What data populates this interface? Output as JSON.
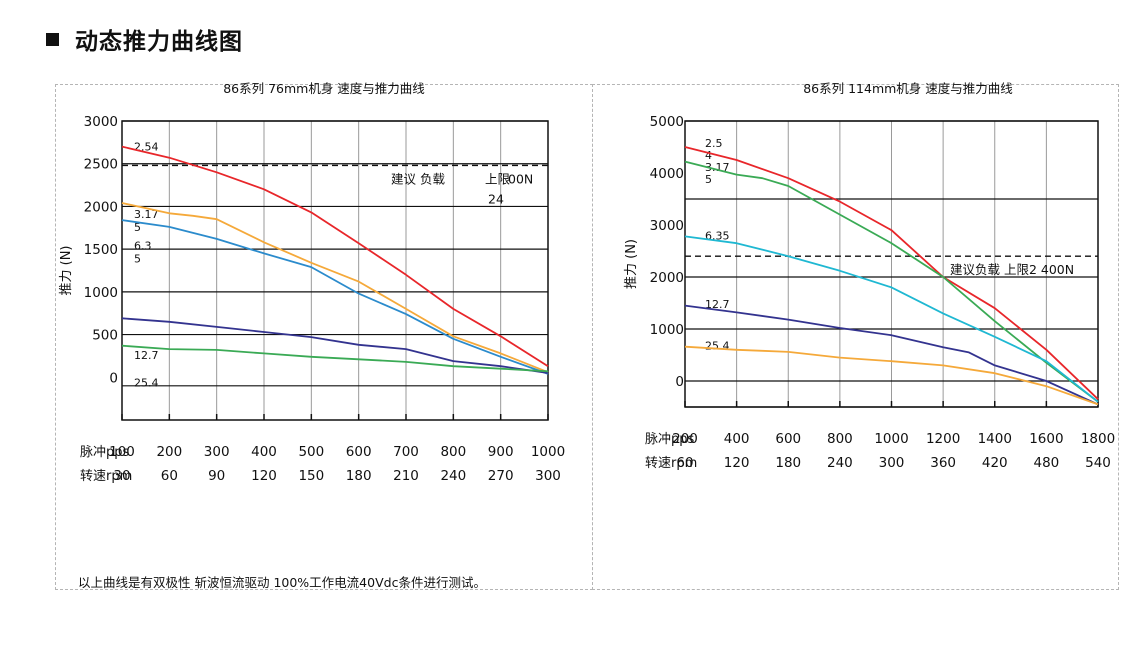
{
  "page": {
    "section_icon": "black-square-bullet",
    "section_title": "动态推力曲线图",
    "footnote": "以上曲线是有双极性 斩波恒流驱动 100%工作电流40Vdc条件进行测试。"
  },
  "colors": {
    "red": "#e8262a",
    "orange": "#f5a93a",
    "blue": "#2b8bcc",
    "navy": "#33338f",
    "green": "#3aaa55",
    "cyan": "#1fb8d2"
  },
  "chart_data": [
    {
      "type": "line",
      "title": "86系列 76mm机身 速度与推力曲线",
      "ylabel": "推力 (N)",
      "ylim": [
        -500,
        3000
      ],
      "yticks": [
        "3000",
        "2500",
        "2000",
        "1500",
        "1000",
        "500",
        "0"
      ],
      "ytick_values": [
        3000,
        2500,
        2000,
        1500,
        1000,
        500,
        0
      ],
      "xlim": [
        100,
        1000
      ],
      "x_pps": [
        100,
        200,
        300,
        400,
        500,
        600,
        700,
        800,
        900,
        1000
      ],
      "row_labels": [
        "脉冲pps",
        "转速rpm"
      ],
      "xticks_pps": [
        "100",
        "200",
        "300",
        "400",
        "500",
        "600",
        "700",
        "800",
        "900",
        "1000"
      ],
      "xticks_rpm": [
        "30",
        "60",
        "90",
        "120",
        "150",
        "180",
        "210",
        "240",
        "270",
        "300"
      ],
      "grid": true,
      "limit_line": {
        "value": 2480,
        "label_left": "建议 负载",
        "label_mid": "上限",
        "label_right": "00N",
        "label_below": "24"
      },
      "curve_labels": [
        {
          "text": "2.54",
          "y": 2700
        },
        {
          "text": "3.17",
          "y": 1910
        },
        {
          "text": "5",
          "y": 1760
        },
        {
          "text": "6.3",
          "y": 1540
        },
        {
          "text": "5",
          "y": 1390
        },
        {
          "text": "12.7",
          "y": 260
        },
        {
          "text": "25.4",
          "y": -60
        }
      ],
      "series": [
        {
          "color": "#e8262a",
          "x": [
            100,
            200,
            300,
            400,
            500,
            600,
            700,
            800,
            900,
            1000
          ],
          "values": [
            2700,
            2570,
            2400,
            2200,
            1930,
            1570,
            1200,
            800,
            480,
            130
          ]
        },
        {
          "color": "#f5a93a",
          "x": [
            100,
            200,
            250,
            300,
            400,
            500,
            600,
            700,
            800,
            900,
            1000
          ],
          "values": [
            2040,
            1920,
            1890,
            1850,
            1580,
            1340,
            1120,
            800,
            480,
            280,
            60
          ]
        },
        {
          "color": "#2b8bcc",
          "x": [
            100,
            200,
            300,
            400,
            500,
            600,
            700,
            800,
            900,
            1000
          ],
          "values": [
            1840,
            1760,
            1620,
            1450,
            1290,
            980,
            740,
            450,
            240,
            40
          ]
        },
        {
          "color": "#33338f",
          "x": [
            100,
            200,
            300,
            400,
            500,
            600,
            700,
            800,
            900,
            1000
          ],
          "values": [
            690,
            650,
            590,
            530,
            470,
            380,
            330,
            190,
            130,
            50
          ]
        },
        {
          "color": "#3aaa55",
          "x": [
            100,
            200,
            300,
            400,
            500,
            600,
            700,
            800,
            900,
            1000
          ],
          "values": [
            370,
            330,
            320,
            280,
            240,
            210,
            180,
            130,
            100,
            70
          ]
        }
      ]
    },
    {
      "type": "line",
      "title": "86系列 114mm机身 速度与推力曲线",
      "ylabel": "推力 (N)",
      "ylim": [
        -500,
        5000
      ],
      "yticks": [
        "5000",
        "4000",
        "3000",
        "2000",
        "1000",
        "0"
      ],
      "ytick_values": [
        5000,
        4000,
        3000,
        2000,
        1000,
        0
      ],
      "xlim": [
        200,
        1800
      ],
      "x_pps": [
        200,
        400,
        600,
        800,
        1000,
        1200,
        1400,
        1600,
        1800
      ],
      "row_labels": [
        "脉冲pps",
        "转速rpm"
      ],
      "xticks_pps": [
        "200",
        "400",
        "600",
        "800",
        "1000",
        "1200",
        "1400",
        "1600",
        "1800"
      ],
      "xticks_rpm": [
        "60",
        "120",
        "180",
        "240",
        "300",
        "360",
        "420",
        "480",
        "540"
      ],
      "grid": true,
      "limit_line": {
        "value": 2400,
        "label_left": "建议负载 上限2 400N"
      },
      "curve_labels": [
        {
          "text": "2.5",
          "y": 4580
        },
        {
          "text": "4",
          "y": 4350
        },
        {
          "text": "3.17",
          "y": 4120
        },
        {
          "text": "5",
          "y": 3880
        },
        {
          "text": "6.35",
          "y": 2800
        },
        {
          "text": "12.7",
          "y": 1480
        },
        {
          "text": "25.4",
          "y": 680
        }
      ],
      "series": [
        {
          "color": "#e8262a",
          "x": [
            200,
            400,
            600,
            800,
            1000,
            1200,
            1400,
            1600,
            1800
          ],
          "values": [
            4500,
            4250,
            3900,
            3450,
            2900,
            2000,
            1400,
            600,
            -350
          ]
        },
        {
          "color": "#3aaa55",
          "x": [
            200,
            400,
            500,
            600,
            800,
            1000,
            1200,
            1400,
            1600,
            1800
          ],
          "values": [
            4220,
            3970,
            3900,
            3750,
            3200,
            2650,
            2000,
            1150,
            350,
            -400
          ]
        },
        {
          "color": "#1fb8d2",
          "x": [
            200,
            400,
            600,
            800,
            1000,
            1200,
            1400,
            1600,
            1800
          ],
          "values": [
            2780,
            2650,
            2400,
            2120,
            1800,
            1300,
            850,
            380,
            -400
          ]
        },
        {
          "color": "#33338f",
          "x": [
            200,
            400,
            600,
            800,
            1000,
            1200,
            1300,
            1400,
            1600,
            1800
          ],
          "values": [
            1450,
            1320,
            1180,
            1020,
            880,
            650,
            550,
            300,
            0,
            -450
          ]
        },
        {
          "color": "#f5a93a",
          "x": [
            200,
            400,
            500,
            600,
            800,
            1000,
            1200,
            1400,
            1600,
            1800
          ],
          "values": [
            660,
            600,
            580,
            560,
            450,
            380,
            300,
            150,
            -100,
            -450
          ]
        }
      ]
    }
  ]
}
